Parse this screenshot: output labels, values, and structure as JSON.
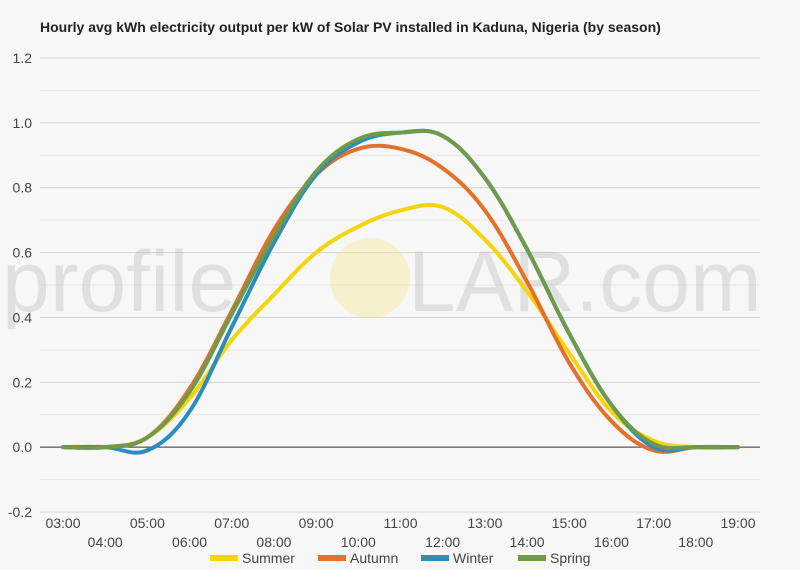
{
  "watermark": {
    "left": "profile",
    "middle": "S",
    "right": "LAR.com"
  },
  "chart_data": {
    "type": "line",
    "title": "Hourly avg kWh electricity output per kW of Solar PV installed in Kaduna, Nigeria (by season)",
    "xlabel": "",
    "ylabel": "",
    "ylim": [
      -0.2,
      1.2
    ],
    "yticks": [
      1.2,
      1.0,
      0.8,
      0.6,
      0.4,
      0.2,
      0.0,
      -0.2
    ],
    "ytick_labels": [
      "1.2",
      "1.0",
      "0.8",
      "0.6",
      "0.4",
      "0.2",
      "0.0",
      "-0.2"
    ],
    "x": [
      "03:00",
      "04:00",
      "05:00",
      "06:00",
      "07:00",
      "08:00",
      "09:00",
      "10:00",
      "11:00",
      "12:00",
      "13:00",
      "14:00",
      "15:00",
      "16:00",
      "17:00",
      "18:00",
      "19:00"
    ],
    "grid": true,
    "legend_position": "bottom",
    "series": [
      {
        "name": "Summer",
        "color": "#f5d40a",
        "values": [
          0.0,
          0.0,
          0.03,
          0.15,
          0.33,
          0.47,
          0.6,
          0.68,
          0.73,
          0.74,
          0.64,
          0.48,
          0.29,
          0.11,
          0.02,
          0.0,
          0.0
        ]
      },
      {
        "name": "Autumn",
        "color": "#e4702a",
        "values": [
          0.0,
          0.0,
          0.03,
          0.18,
          0.42,
          0.67,
          0.84,
          0.92,
          0.92,
          0.86,
          0.73,
          0.51,
          0.26,
          0.08,
          -0.01,
          0.0,
          0.0
        ]
      },
      {
        "name": "Winter",
        "color": "#2b8cc0",
        "values": [
          0.0,
          0.0,
          -0.01,
          0.11,
          0.37,
          0.63,
          0.84,
          0.94,
          0.97,
          0.96,
          0.83,
          0.61,
          0.35,
          0.13,
          0.0,
          0.0,
          0.0
        ]
      },
      {
        "name": "Spring",
        "color": "#6e9a4a",
        "values": [
          0.0,
          0.0,
          0.03,
          0.17,
          0.41,
          0.65,
          0.85,
          0.95,
          0.97,
          0.96,
          0.83,
          0.61,
          0.35,
          0.13,
          0.01,
          0.0,
          0.0
        ]
      }
    ]
  }
}
